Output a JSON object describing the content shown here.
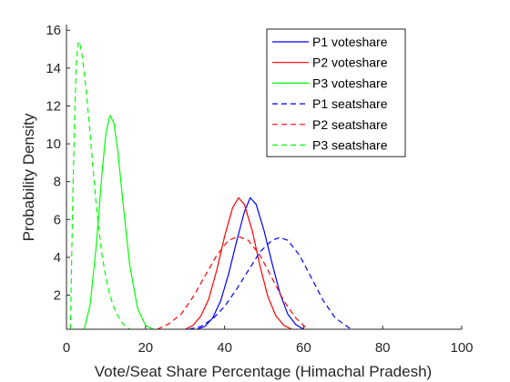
{
  "chart_data": {
    "type": "line",
    "xlabel": "Vote/Seat Share Percentage (Himachal Pradesh)",
    "ylabel": "Probability Density",
    "xlim": [
      0,
      100
    ],
    "ylim": [
      0.2,
      16.3
    ],
    "xticks": [
      0,
      20,
      40,
      60,
      80,
      100
    ],
    "yticks": [
      2,
      4,
      6,
      8,
      10,
      12,
      14,
      16
    ],
    "grid": false,
    "legend_position": "top-right",
    "series": [
      {
        "name": "P1 voteshare",
        "color": "#0000ff",
        "style": "solid",
        "x": [
          33,
          35,
          37,
          39,
          41,
          43,
          45,
          46.5,
          48,
          50,
          52,
          54,
          56,
          58,
          60
        ],
        "y": [
          0.2,
          0.35,
          0.8,
          1.7,
          3.1,
          4.8,
          6.4,
          7.15,
          6.8,
          5.4,
          3.7,
          2.1,
          1.0,
          0.45,
          0.2
        ]
      },
      {
        "name": "P2 voteshare",
        "color": "#ff0000",
        "style": "solid",
        "x": [
          30,
          32,
          34,
          36,
          38,
          40,
          42,
          43.5,
          45,
          47,
          49,
          51,
          53,
          55,
          57
        ],
        "y": [
          0.2,
          0.4,
          0.9,
          1.8,
          3.3,
          5.1,
          6.6,
          7.15,
          6.8,
          5.4,
          3.5,
          1.9,
          0.9,
          0.4,
          0.2
        ]
      },
      {
        "name": "P3 voteshare",
        "color": "#00ff00",
        "style": "solid",
        "x": [
          4.5,
          6,
          7.5,
          9,
          10,
          11,
          12,
          13,
          14.5,
          16,
          18,
          20,
          22
        ],
        "y": [
          0.2,
          1.5,
          4.5,
          8.5,
          10.6,
          11.5,
          11.1,
          9.6,
          6.5,
          3.6,
          1.3,
          0.4,
          0.2
        ]
      },
      {
        "name": "P1 seatshare",
        "color": "#0000ff",
        "style": "dashed",
        "x": [
          31,
          34,
          37,
          40,
          43,
          46,
          49,
          52,
          54,
          56,
          59,
          62,
          65,
          68,
          72
        ],
        "y": [
          0.2,
          0.35,
          0.75,
          1.4,
          2.3,
          3.3,
          4.3,
          4.9,
          5.05,
          4.9,
          4.1,
          2.9,
          1.7,
          0.8,
          0.2
        ]
      },
      {
        "name": "P2 seatshare",
        "color": "#ff0000",
        "style": "dashed",
        "x": [
          23,
          26,
          29,
          32,
          35,
          38,
          41,
          43.5,
          46,
          49,
          52,
          55,
          58,
          61
        ],
        "y": [
          0.2,
          0.5,
          1.0,
          1.9,
          3.0,
          4.1,
          4.9,
          5.1,
          4.9,
          4.1,
          2.9,
          1.7,
          0.8,
          0.2
        ]
      },
      {
        "name": "P3 seatshare",
        "color": "#00ff00",
        "style": "dashed",
        "x": [
          1,
          1.5,
          2,
          2.5,
          3,
          3.5,
          4,
          5,
          6,
          7,
          8,
          9,
          10,
          11,
          12,
          13,
          14,
          15,
          16
        ],
        "y": [
          0.2,
          6.0,
          11.0,
          14.3,
          15.4,
          15.2,
          14.6,
          12.8,
          10.5,
          8.0,
          5.8,
          4.1,
          2.9,
          2.0,
          1.35,
          0.9,
          0.55,
          0.35,
          0.2
        ]
      }
    ]
  }
}
